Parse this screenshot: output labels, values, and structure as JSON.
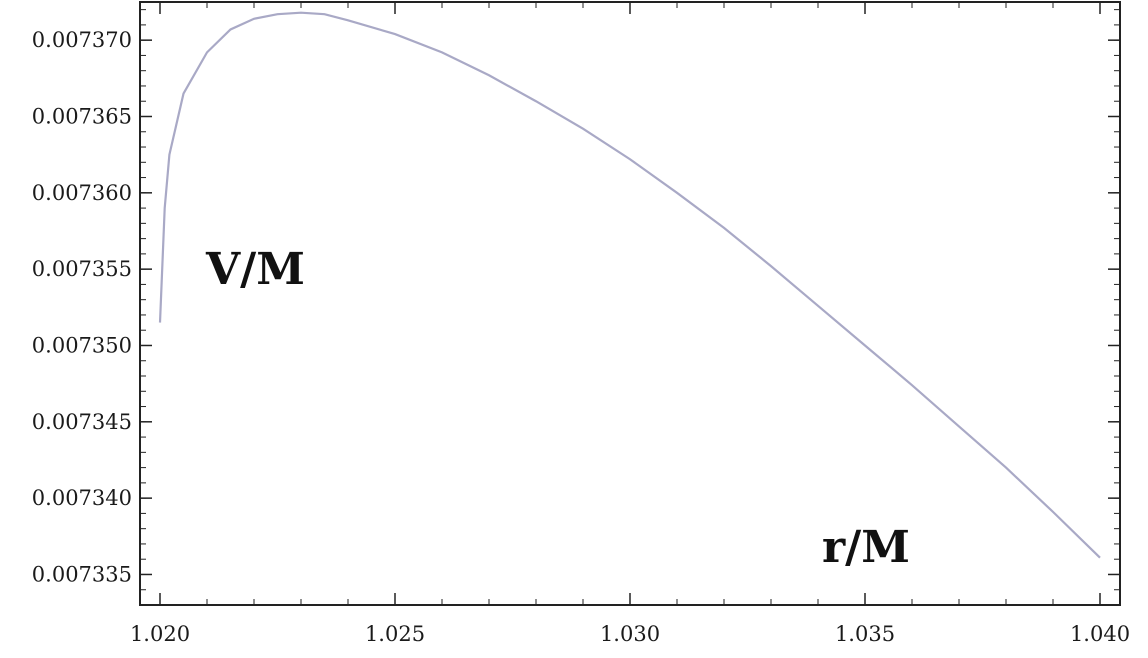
{
  "chart_data": {
    "type": "line",
    "title": "",
    "xlabel": "r/M",
    "ylabel": "V/M",
    "xlim": [
      1.02,
      1.04
    ],
    "ylim": [
      0.007333,
      0.0073725
    ],
    "x_ticks": [
      "1.020",
      "1.025",
      "1.030",
      "1.035",
      "1.040"
    ],
    "x_tick_values": [
      1.02,
      1.025,
      1.03,
      1.035,
      1.04
    ],
    "y_ticks": [
      "0.007335",
      "0.007340",
      "0.007345",
      "0.007350",
      "0.007355",
      "0.007360",
      "0.007365",
      "0.007370"
    ],
    "y_tick_values": [
      0.007335,
      0.00734,
      0.007345,
      0.00735,
      0.007355,
      0.00736,
      0.007365,
      0.00737
    ],
    "grid": false,
    "line_color": "#a9a9c6",
    "series": [
      {
        "x": [
          1.02,
          1.0201,
          1.0202,
          1.0205,
          1.021,
          1.0215,
          1.022,
          1.0225,
          1.023,
          1.0235,
          1.024,
          1.025,
          1.026,
          1.027,
          1.028,
          1.029,
          1.03,
          1.031,
          1.032,
          1.033,
          1.034,
          1.035,
          1.036,
          1.037,
          1.038,
          1.039,
          1.04
        ],
        "y": [
          0.0073515,
          0.007359,
          0.0073625,
          0.0073665,
          0.0073692,
          0.0073707,
          0.0073714,
          0.0073717,
          0.0073718,
          0.0073717,
          0.0073713,
          0.0073704,
          0.0073692,
          0.0073677,
          0.007366,
          0.0073642,
          0.0073622,
          0.00736,
          0.0073577,
          0.0073552,
          0.0073526,
          0.00735,
          0.0073474,
          0.0073447,
          0.007342,
          0.0073391,
          0.0073361
        ]
      }
    ]
  }
}
